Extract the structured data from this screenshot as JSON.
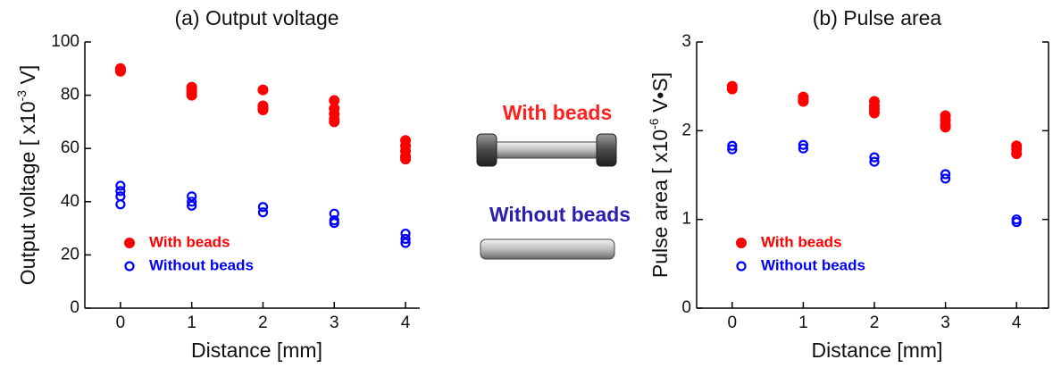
{
  "chart_data": [
    {
      "type": "scatter",
      "title": "(a) Output voltage",
      "xlabel": "Distance [mm]",
      "ylabel": [
        "Output voltage [ x10",
        "-3",
        " V]"
      ],
      "xlim": [
        -0.5,
        4.2
      ],
      "xticks": [
        0,
        1,
        2,
        3,
        4
      ],
      "ylim": [
        0,
        100
      ],
      "yticks": [
        0,
        20,
        40,
        60,
        80,
        100
      ],
      "legend": "lower-left",
      "series": [
        {
          "name": "With beads",
          "color": "#ff0000",
          "marker": "filled",
          "x": [
            0,
            0,
            0,
            1,
            1,
            1,
            1,
            2,
            2,
            2,
            2,
            3,
            3,
            3,
            3,
            3,
            4,
            4,
            4,
            4,
            4
          ],
          "values": [
            90,
            89,
            89.5,
            83,
            82,
            81,
            80,
            82,
            76,
            75,
            74.5,
            78,
            75,
            73,
            71,
            70,
            63,
            61,
            59,
            57,
            56
          ]
        },
        {
          "name": "Without beads",
          "color": "#0000ff",
          "marker": "open",
          "x": [
            0,
            0,
            0,
            0,
            1,
            1,
            1,
            2,
            2,
            3,
            3,
            3,
            4,
            4,
            4
          ],
          "values": [
            46,
            44,
            42,
            39,
            42,
            40,
            38.5,
            38,
            36,
            35.5,
            33,
            32,
            28,
            26,
            24.5
          ]
        }
      ]
    },
    {
      "type": "scatter",
      "title": "(b) Pulse area",
      "xlabel": "Distance [mm]",
      "ylabel": [
        "Pulse area [ x10",
        "-6",
        " V•S]"
      ],
      "xlim": [
        -0.5,
        4.45
      ],
      "xticks": [
        0,
        1,
        2,
        3,
        4
      ],
      "ylim": [
        0,
        3
      ],
      "yticks": [
        0,
        1,
        2,
        3
      ],
      "legend": "lower-left",
      "series": [
        {
          "name": "With beads",
          "color": "#ff0000",
          "marker": "filled",
          "x": [
            0,
            0,
            1,
            1,
            1,
            2,
            2,
            2,
            2,
            3,
            3,
            3,
            3,
            4,
            4,
            4
          ],
          "values": [
            2.5,
            2.47,
            2.38,
            2.35,
            2.33,
            2.33,
            2.28,
            2.24,
            2.2,
            2.17,
            2.12,
            2.07,
            2.04,
            1.83,
            1.79,
            1.74
          ]
        },
        {
          "name": "Without beads",
          "color": "#0000ff",
          "marker": "open",
          "x": [
            0,
            0,
            1,
            1,
            2,
            2,
            3,
            3,
            4,
            4
          ],
          "values": [
            1.83,
            1.79,
            1.84,
            1.8,
            1.7,
            1.65,
            1.51,
            1.46,
            1.0,
            0.97
          ]
        }
      ]
    }
  ],
  "illustration": {
    "with_label": "With beads",
    "without_label": "Without beads"
  }
}
